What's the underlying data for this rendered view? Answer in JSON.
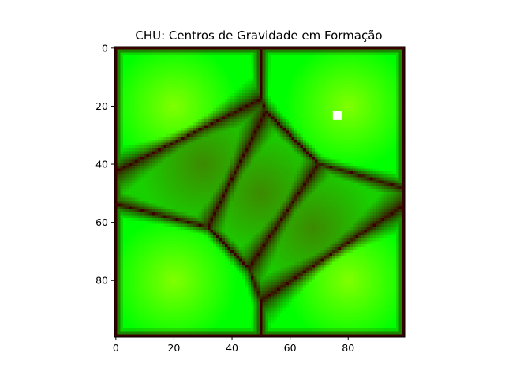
{
  "chart_data": {
    "type": "heatmap",
    "title": "CHU: Centros de Gravidade em Formação",
    "xlabel": "",
    "ylabel": "",
    "grid_size": [
      100,
      100
    ],
    "xlim": [
      0,
      99
    ],
    "ylim": [
      99,
      0
    ],
    "x_ticks": [
      0,
      20,
      40,
      60,
      80
    ],
    "y_ticks": [
      0,
      20,
      40,
      60,
      80
    ],
    "grid": false,
    "legend": "none",
    "colormap": {
      "low": "#3a0000",
      "mid": "#3c8a00",
      "high": "#00ff00",
      "accent": "#80ff00"
    },
    "boundary_color": "#3a0000",
    "marker": {
      "x": 76,
      "y": 23,
      "color": "#ffffff"
    },
    "centers": [
      {
        "x": 50,
        "y": 50
      },
      {
        "x": 20,
        "y": 20
      },
      {
        "x": 80,
        "y": 20
      },
      {
        "x": 20,
        "y": 80
      },
      {
        "x": 80,
        "y": 80
      },
      {
        "x": 30,
        "y": 40
      },
      {
        "x": 68,
        "y": 62
      }
    ]
  }
}
